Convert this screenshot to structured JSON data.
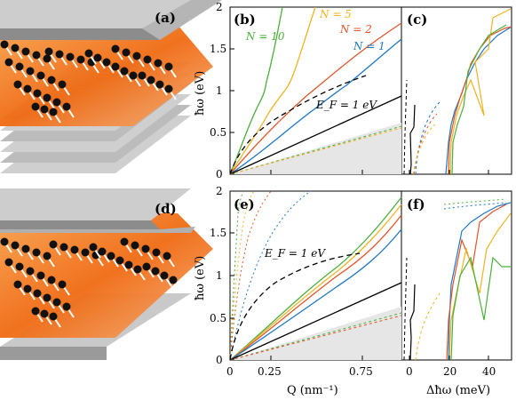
{
  "panels": {
    "a": "(a)",
    "b": "(b)",
    "c": "(c)",
    "d": "(d)",
    "e": "(e)",
    "f": "(f)"
  },
  "axes": {
    "ylabel": "ħω (eV)",
    "xlabel_left": "Q (nm⁻¹)",
    "xlabel_right": "Δħω (meV)",
    "y_ticks": [
      "0",
      "0.5",
      "1",
      "1.5",
      "2"
    ],
    "x_ticks_left": [
      "0",
      "0.25",
      "0.75"
    ],
    "x_ticks_right": [
      "0",
      "20",
      "40"
    ]
  },
  "annotations": {
    "n10": "N = 10",
    "n5": "N = 5",
    "n2": "N = 2",
    "n1": "N = 1",
    "ef_top": "E_F = 1 eV",
    "ef_bottom": "E_F = 1 eV"
  },
  "colors": {
    "n1": "#1f77c4",
    "n2": "#e0562a",
    "n5": "#f0b323",
    "n10": "#4cae3c",
    "light_cone": "#e0e0e0",
    "graphene_orange": "#f47a1f"
  },
  "chart_data": [
    {
      "type": "line",
      "panel": "b",
      "xlabel": "",
      "ylabel": "ħω (eV)",
      "xlim": [
        0,
        0.75
      ],
      "ylim": [
        0,
        2
      ],
      "series": [
        {
          "name": "N = 10",
          "x": [
            0,
            0.03,
            0.06,
            0.08,
            0.1,
            0.12,
            0.15,
            0.18
          ],
          "y": [
            0,
            0.25,
            0.5,
            0.7,
            1.05,
            1.35,
            1.75,
            2.0
          ]
        },
        {
          "name": "N = 5",
          "x": [
            0,
            0.05,
            0.1,
            0.15,
            0.2,
            0.25,
            0.32,
            0.4
          ],
          "y": [
            0,
            0.3,
            0.6,
            0.85,
            1.1,
            1.4,
            1.7,
            2.0
          ]
        },
        {
          "name": "N = 2",
          "x": [
            0,
            0.1,
            0.2,
            0.3,
            0.4,
            0.5,
            0.6,
            0.75
          ],
          "y": [
            0,
            0.4,
            0.75,
            1.0,
            1.25,
            1.45,
            1.6,
            1.85
          ]
        },
        {
          "name": "N = 1",
          "x": [
            0,
            0.1,
            0.2,
            0.3,
            0.4,
            0.5,
            0.6,
            0.75
          ],
          "y": [
            0,
            0.3,
            0.55,
            0.8,
            1.0,
            1.2,
            1.4,
            1.65
          ]
        },
        {
          "name": "",
          "x": [
            0,
            0.1,
            0.2,
            0.3,
            0.4,
            0.5,
            0.6,
            0.75
          ],
          "y": [
            0,
            0.12,
            0.24,
            0.37,
            0.5,
            0.62,
            0.75,
            0.93
          ]
        },
        {
          "name": "",
          "x": [
            0,
            0.05,
            0.1,
            0.2,
            0.3,
            0.4,
            0.5,
            0.58
          ],
          "y": [
            0,
            0.38,
            0.53,
            0.72,
            0.87,
            0.99,
            1.1,
            1.17
          ]
        }
      ]
    },
    {
      "type": "line",
      "panel": "e",
      "xlabel": "Q (nm⁻¹)",
      "ylabel": "ħω (eV)",
      "xlim": [
        0,
        0.75
      ],
      "ylim": [
        0,
        2
      ],
      "series": [
        {
          "name": "",
          "x": [
            0,
            0.1,
            0.2,
            0.3,
            0.4,
            0.5,
            0.6,
            0.75
          ],
          "y": [
            0,
            0.12,
            0.24,
            0.37,
            0.5,
            0.62,
            0.75,
            0.93
          ]
        },
        {
          "name": "",
          "x": [
            0,
            0.05,
            0.1,
            0.2,
            0.3,
            0.4,
            0.5,
            0.58
          ],
          "y": [
            0,
            0.38,
            0.53,
            0.72,
            0.87,
            0.99,
            1.1,
            1.17
          ]
        }
      ]
    }
  ]
}
